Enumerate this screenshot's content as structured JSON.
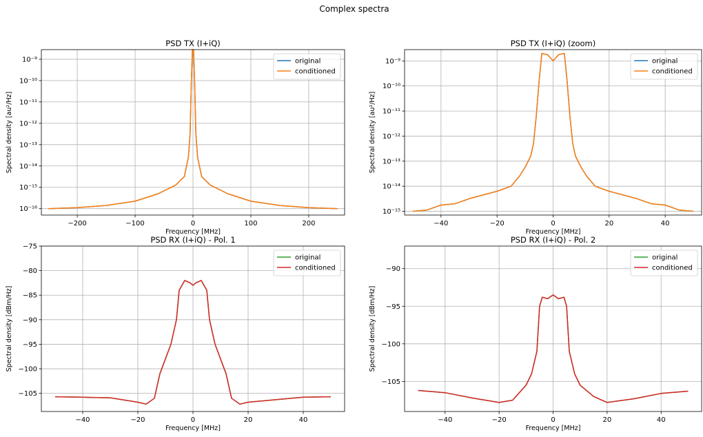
{
  "figure_title": "Complex spectra",
  "chart_data": [
    {
      "id": "tx",
      "type": "line",
      "title": "PSD TX (I+iQ)",
      "xlabel": "Frequency [MHz]",
      "ylabel": "Spectral density [au²/Hz]",
      "xlim": [
        -262,
        262
      ],
      "ylim": [
        -16.3,
        -8.55
      ],
      "yscale": "log",
      "xticks": [
        -200,
        -100,
        0,
        100,
        200
      ],
      "xtick_labels": [
        "−200",
        "−100",
        "0",
        "100",
        "200"
      ],
      "yticks": [
        -16,
        -15,
        -14,
        -13,
        -12,
        -11,
        -10,
        -9
      ],
      "ytick_labels": [
        "10⁻¹⁶",
        "10⁻¹⁵",
        "10⁻¹⁴",
        "10⁻¹³",
        "10⁻¹²",
        "10⁻¹¹",
        "10⁻¹⁰",
        "10⁻⁹"
      ],
      "grid": true,
      "legend_position": "top-right",
      "series": [
        {
          "name": "original",
          "color": "#1f77b4",
          "x": [
            -250,
            -200,
            -150,
            -100,
            -60,
            -30,
            -15,
            -8,
            -5,
            -3,
            -1,
            0,
            1,
            3,
            5,
            8,
            15,
            30,
            60,
            100,
            150,
            200,
            250
          ],
          "y": [
            -16.0,
            -15.95,
            -15.85,
            -15.65,
            -15.3,
            -14.9,
            -14.5,
            -13.6,
            -12.5,
            -10.2,
            -8.55,
            -8.7,
            -8.55,
            -10.2,
            -12.5,
            -13.6,
            -14.5,
            -14.9,
            -15.3,
            -15.65,
            -15.85,
            -15.95,
            -16.0
          ]
        },
        {
          "name": "conditioned",
          "color": "#ff7f0e",
          "x": [
            -250,
            -200,
            -150,
            -100,
            -60,
            -30,
            -15,
            -8,
            -5,
            -3,
            -1,
            0,
            1,
            3,
            5,
            8,
            15,
            30,
            60,
            100,
            150,
            200,
            250
          ],
          "y": [
            -16.0,
            -15.95,
            -15.85,
            -15.65,
            -15.3,
            -14.9,
            -14.5,
            -13.6,
            -12.5,
            -10.2,
            -8.55,
            -8.7,
            -8.55,
            -10.2,
            -12.5,
            -13.6,
            -14.5,
            -14.9,
            -15.3,
            -15.65,
            -15.85,
            -15.95,
            -16.0
          ]
        }
      ]
    },
    {
      "id": "txz",
      "type": "line",
      "title": "PSD TX (I+iQ) (zoom)",
      "xlabel": "Frequency [MHz]",
      "ylabel": "Spectral density [au²/Hz]",
      "xlim": [
        -53,
        53
      ],
      "ylim": [
        -15.15,
        -8.55
      ],
      "yscale": "log",
      "xticks": [
        -40,
        -20,
        0,
        20,
        40
      ],
      "xtick_labels": [
        "−40",
        "−20",
        "0",
        "20",
        "40"
      ],
      "yticks": [
        -15,
        -14,
        -13,
        -12,
        -11,
        -10,
        -9
      ],
      "ytick_labels": [
        "10⁻¹⁵",
        "10⁻¹⁴",
        "10⁻¹³",
        "10⁻¹²",
        "10⁻¹¹",
        "10⁻¹⁰",
        "10⁻⁹"
      ],
      "grid": true,
      "legend_position": "top-right",
      "series": [
        {
          "name": "original",
          "color": "#1f77b4",
          "x": [
            -50,
            -45,
            -40,
            -35,
            -30,
            -25,
            -20,
            -15,
            -12,
            -10,
            -8,
            -7,
            -6,
            -5,
            -4,
            -2,
            0,
            2,
            4,
            5,
            6,
            7,
            8,
            10,
            12,
            15,
            20,
            25,
            30,
            35,
            40,
            45,
            50
          ],
          "y": [
            -15.0,
            -14.95,
            -14.75,
            -14.7,
            -14.5,
            -14.35,
            -14.2,
            -14.0,
            -13.6,
            -13.25,
            -12.8,
            -12.3,
            -11.2,
            -9.8,
            -8.7,
            -8.75,
            -9.0,
            -8.75,
            -8.7,
            -9.8,
            -11.2,
            -12.3,
            -12.8,
            -13.25,
            -13.6,
            -14.0,
            -14.2,
            -14.35,
            -14.5,
            -14.7,
            -14.75,
            -14.95,
            -15.0
          ]
        },
        {
          "name": "conditioned",
          "color": "#ff7f0e",
          "x": [
            -50,
            -45,
            -40,
            -35,
            -30,
            -25,
            -20,
            -15,
            -12,
            -10,
            -8,
            -7,
            -6,
            -5,
            -4,
            -2,
            0,
            2,
            4,
            5,
            6,
            7,
            8,
            10,
            12,
            15,
            20,
            25,
            30,
            35,
            40,
            45,
            50
          ],
          "y": [
            -15.0,
            -14.95,
            -14.75,
            -14.7,
            -14.5,
            -14.35,
            -14.2,
            -14.0,
            -13.6,
            -13.25,
            -12.8,
            -12.3,
            -11.2,
            -9.8,
            -8.7,
            -8.75,
            -9.0,
            -8.75,
            -8.7,
            -9.8,
            -11.2,
            -12.3,
            -12.8,
            -13.25,
            -13.6,
            -14.0,
            -14.2,
            -14.35,
            -14.5,
            -14.7,
            -14.75,
            -14.95,
            -15.0
          ]
        }
      ]
    },
    {
      "id": "rx1",
      "type": "line",
      "title": "PSD RX (I+iQ) - Pol. 1",
      "xlabel": "Frequency [MHz]",
      "ylabel": "Spectral density [dBm/Hz]",
      "xlim": [
        -55,
        55
      ],
      "ylim": [
        -108.7,
        -75
      ],
      "yscale": "linear",
      "xticks": [
        -40,
        -20,
        0,
        20,
        40
      ],
      "xtick_labels": [
        "−40",
        "−20",
        "0",
        "20",
        "40"
      ],
      "yticks": [
        -105,
        -100,
        -95,
        -90,
        -85,
        -80,
        -75
      ],
      "ytick_labels": [
        "−105",
        "−100",
        "−95",
        "−90",
        "−85",
        "−80",
        "−75"
      ],
      "grid": true,
      "legend_position": "top-right",
      "series": [
        {
          "name": "original",
          "color": "#2ca02c",
          "x": [
            -50,
            -40,
            -30,
            -20,
            -17,
            -14,
            -12,
            -10,
            -8,
            -6,
            -5,
            -3,
            -1,
            0,
            1,
            3,
            5,
            6,
            8,
            10,
            12,
            14,
            17,
            20,
            30,
            40,
            50
          ],
          "y": [
            -105.7,
            -105.8,
            -105.9,
            -106.8,
            -107.2,
            -106.0,
            -101.0,
            -98.0,
            -95.0,
            -90.0,
            -84.0,
            -82.0,
            -82.5,
            -83.0,
            -82.5,
            -82.0,
            -84.0,
            -90.0,
            -95.0,
            -98.0,
            -101.0,
            -106.0,
            -107.2,
            -106.8,
            -106.3,
            -105.8,
            -105.7
          ]
        },
        {
          "name": "conditioned",
          "color": "#d62728",
          "x": [
            -50,
            -40,
            -30,
            -20,
            -17,
            -14,
            -12,
            -10,
            -8,
            -6,
            -5,
            -3,
            -1,
            0,
            1,
            3,
            5,
            6,
            8,
            10,
            12,
            14,
            17,
            20,
            30,
            40,
            50
          ],
          "y": [
            -105.7,
            -105.8,
            -105.9,
            -106.8,
            -107.2,
            -106.0,
            -101.0,
            -98.0,
            -95.0,
            -90.0,
            -84.0,
            -82.0,
            -82.5,
            -83.0,
            -82.5,
            -82.0,
            -84.0,
            -90.0,
            -95.0,
            -98.0,
            -101.0,
            -106.0,
            -107.2,
            -106.8,
            -106.3,
            -105.8,
            -105.7
          ]
        }
      ]
    },
    {
      "id": "rx2",
      "type": "line",
      "title": "PSD RX (I+iQ) - Pol. 2",
      "xlabel": "Frequency [MHz]",
      "ylabel": "Spectral density [dBm/Hz]",
      "xlim": [
        -55,
        55
      ],
      "ylim": [
        -109,
        -87
      ],
      "yscale": "linear",
      "xticks": [
        -40,
        -20,
        0,
        20,
        40
      ],
      "xtick_labels": [
        "−40",
        "−20",
        "0",
        "20",
        "40"
      ],
      "yticks": [
        -105,
        -100,
        -95,
        -90
      ],
      "ytick_labels": [
        "−105",
        "−100",
        "−95",
        "−90"
      ],
      "grid": true,
      "legend_position": "top-right",
      "series": [
        {
          "name": "original",
          "color": "#2ca02c",
          "x": [
            -50,
            -40,
            -30,
            -20,
            -15,
            -10,
            -8,
            -6,
            -5,
            -4,
            -2,
            0,
            2,
            4,
            5,
            6,
            8,
            10,
            15,
            20,
            30,
            40,
            50
          ],
          "y": [
            -106.2,
            -106.5,
            -107.2,
            -107.8,
            -107.5,
            -105.5,
            -104.0,
            -101.0,
            -95.0,
            -93.8,
            -94.0,
            -93.5,
            -94.0,
            -93.8,
            -95.0,
            -101.0,
            -104.0,
            -105.5,
            -107.0,
            -107.8,
            -107.3,
            -106.6,
            -106.3
          ]
        },
        {
          "name": "conditioned",
          "color": "#d62728",
          "x": [
            -50,
            -40,
            -30,
            -20,
            -15,
            -10,
            -8,
            -6,
            -5,
            -4,
            -2,
            0,
            2,
            4,
            5,
            6,
            8,
            10,
            15,
            20,
            30,
            40,
            50
          ],
          "y": [
            -106.2,
            -106.5,
            -107.2,
            -107.8,
            -107.5,
            -105.5,
            -104.0,
            -101.0,
            -95.0,
            -93.8,
            -94.0,
            -93.5,
            -94.0,
            -93.8,
            -95.0,
            -101.0,
            -104.0,
            -105.5,
            -107.0,
            -107.8,
            -107.3,
            -106.6,
            -106.3
          ]
        }
      ]
    }
  ]
}
